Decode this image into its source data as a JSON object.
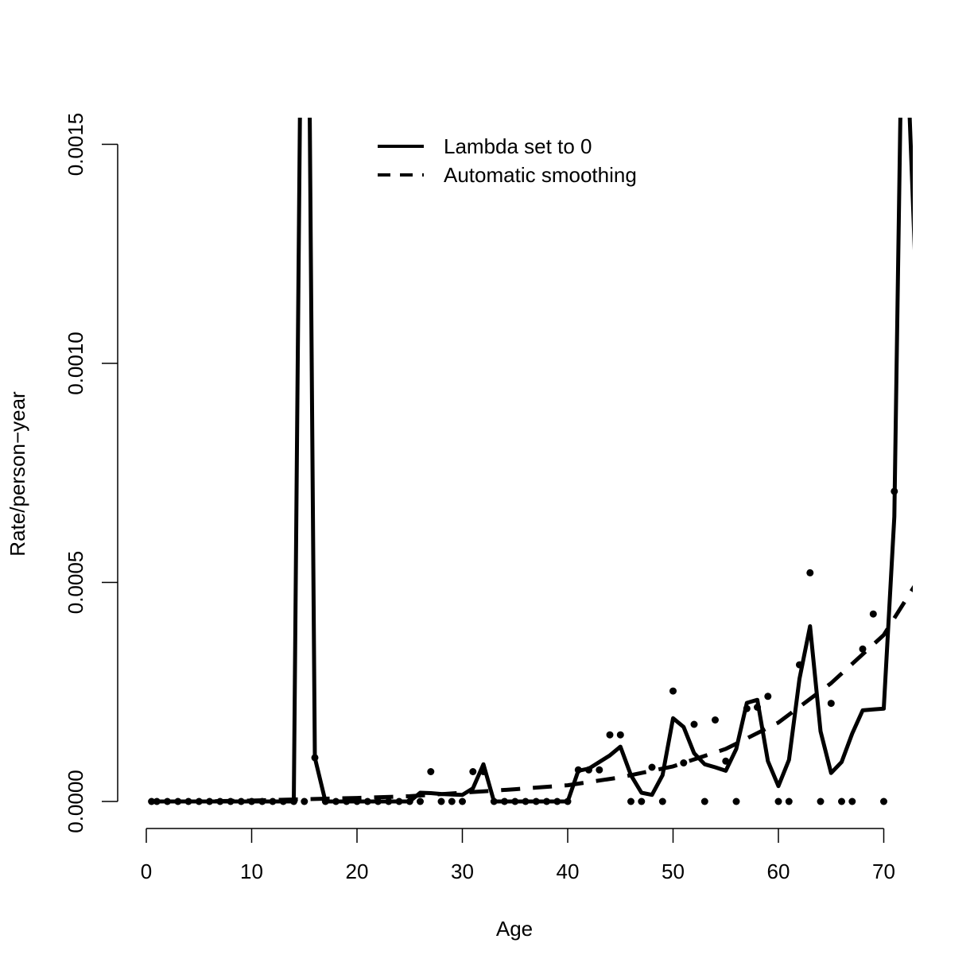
{
  "chart_data": {
    "type": "line",
    "title": "",
    "xlabel": "Age",
    "ylabel": "Rate/person−year",
    "xlim": [
      0,
      73
    ],
    "ylim": [
      0,
      0.0015
    ],
    "x_ticks": [
      0,
      10,
      20,
      30,
      40,
      50,
      60,
      70
    ],
    "x_tick_labels": [
      "0",
      "10",
      "20",
      "30",
      "40",
      "50",
      "60",
      "70"
    ],
    "y_ticks": [
      0,
      0.0005,
      0.001,
      0.0015
    ],
    "y_tick_labels": [
      "0.0000",
      "0.0005",
      "0.0010",
      "0.0015"
    ],
    "legend": {
      "position": "top-center",
      "entries": [
        {
          "label": "Lambda set to 0",
          "style": "solid"
        },
        {
          "label": "Automatic smoothing",
          "style": "dashed"
        }
      ]
    },
    "series": [
      {
        "name": "Lambda set to 0",
        "style": "solid",
        "x": [
          0.5,
          1,
          2,
          3,
          4,
          5,
          6,
          7,
          8,
          9,
          10,
          11,
          12,
          13,
          14,
          14.6,
          15.5,
          16,
          17,
          18,
          19,
          20,
          21,
          22,
          23,
          24,
          25,
          26,
          27,
          28,
          29,
          30,
          31,
          32,
          33,
          34,
          35,
          36,
          37,
          38,
          39,
          40,
          41,
          42,
          43,
          44,
          45,
          46,
          47,
          48,
          49,
          50,
          51,
          52,
          53,
          54,
          55,
          56,
          57,
          58,
          59,
          60,
          61,
          62,
          63,
          64,
          65,
          66,
          67,
          68,
          69,
          70,
          71,
          71.6,
          72.4,
          73
        ],
        "y": [
          0,
          0,
          0,
          0,
          0,
          0,
          0,
          0,
          0,
          0,
          0,
          0,
          0,
          0,
          0,
          0.0016,
          0.0016,
          0.0001,
          0,
          0,
          0,
          0,
          0,
          0,
          0,
          0,
          0,
          2e-05,
          1.9e-05,
          1.7e-05,
          1.6e-05,
          1.5e-05,
          3e-05,
          8.5e-05,
          0,
          0,
          0,
          0,
          0,
          0,
          0,
          0,
          7e-05,
          7.5e-05,
          9e-05,
          0.000105,
          0.000125,
          6e-05,
          2e-05,
          1.5e-05,
          6e-05,
          0.00019,
          0.00017,
          0.00011,
          8.5e-05,
          7.8e-05,
          7e-05,
          0.00012,
          0.000225,
          0.000232,
          9.2e-05,
          3.5e-05,
          9.5e-05,
          0.00028,
          0.0004,
          0.00016,
          6.5e-05,
          9e-05,
          0.000155,
          0.000208,
          0.00021,
          0.000212,
          0.00065,
          0.0016,
          0.0016,
          0.00122
        ]
      },
      {
        "name": "Automatic smoothing",
        "style": "dashed",
        "x": [
          0.5,
          5,
          10,
          15,
          20,
          25,
          30,
          35,
          40,
          45,
          50,
          55,
          60,
          65,
          70,
          73
        ],
        "y": [
          0,
          0,
          2e-06,
          5e-06,
          8e-06,
          1.2e-05,
          2e-05,
          2.8e-05,
          3.7e-05,
          5.5e-05,
          8e-05,
          0.00012,
          0.00018,
          0.00027,
          0.00038,
          0.000495
        ]
      }
    ],
    "points": {
      "x": [
        0.5,
        1,
        2,
        3,
        4,
        5,
        6,
        7,
        8,
        9,
        10,
        11,
        12,
        13,
        14,
        15,
        16,
        17,
        18,
        19,
        20,
        21,
        22,
        23,
        24,
        25,
        26,
        27,
        28,
        29,
        30,
        31,
        32,
        33,
        34,
        35,
        36,
        37,
        38,
        39,
        40,
        41,
        42,
        43,
        44,
        45,
        46,
        47,
        48,
        49,
        50,
        51,
        52,
        53,
        54,
        55,
        56,
        57,
        58,
        59,
        60,
        61,
        62,
        63,
        64,
        65,
        66,
        67,
        68,
        69,
        70,
        71
      ],
      "y": [
        0,
        0,
        0,
        0,
        0,
        0,
        0,
        0,
        0,
        0,
        0,
        0,
        0,
        0,
        0,
        0,
        0.0001,
        0,
        0,
        0,
        0,
        0,
        0,
        0,
        0,
        0,
        0,
        6.8e-05,
        0,
        0,
        0,
        6.8e-05,
        6.8e-05,
        0,
        0,
        0,
        0,
        0,
        0,
        0,
        0,
        7.2e-05,
        7.2e-05,
        7.2e-05,
        0.000152,
        0.000152,
        0,
        0,
        7.8e-05,
        0,
        0.000252,
        8.8e-05,
        0.000176,
        0,
        0.000186,
        9.2e-05,
        0,
        0.000212,
        0.000215,
        0.00024,
        0,
        0,
        0.000312,
        0.000522,
        0,
        0.000224,
        0,
        0,
        0.000348,
        0.000428,
        0,
        0.000708
      ]
    }
  }
}
